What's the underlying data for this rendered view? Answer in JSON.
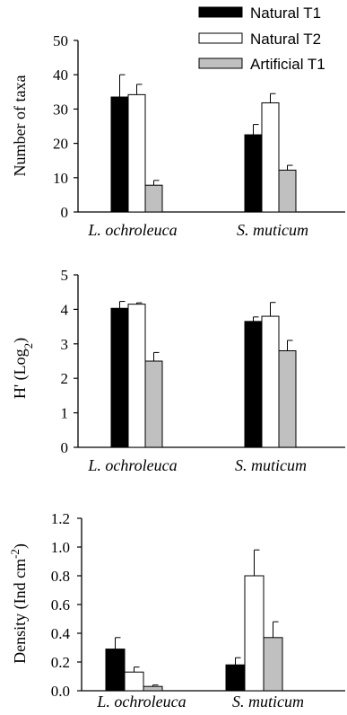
{
  "legend": [
    {
      "name": "Natural T1",
      "color": "#000000"
    },
    {
      "name": "Natural T2",
      "color": "#ffffff"
    },
    {
      "name": "Artificial T1",
      "color": "#c0c0c0"
    }
  ],
  "chart_data": [
    {
      "type": "bar",
      "title": "",
      "ylabel": "Number of taxa",
      "ylabel_sub": "",
      "ylabel_tail": "",
      "ylim": [
        0,
        50
      ],
      "yticks": [
        "0",
        "10",
        "20",
        "30",
        "40",
        "50"
      ],
      "categories": [
        "L. ochroleuca",
        "S. muticum"
      ],
      "series": [
        {
          "name": "Natural T1",
          "values": [
            33.5,
            22.5
          ],
          "errors": [
            6.5,
            3.0
          ]
        },
        {
          "name": "Natural T2",
          "values": [
            34.2,
            31.8
          ],
          "errors": [
            3.0,
            2.7
          ]
        },
        {
          "name": "Artificial T1",
          "values": [
            7.8,
            12.2
          ],
          "errors": [
            1.4,
            1.4
          ]
        }
      ]
    },
    {
      "type": "bar",
      "title": "",
      "ylabel": "H' (Log",
      "ylabel_sub": "2",
      "ylabel_tail": ")",
      "ylim": [
        0,
        5
      ],
      "yticks": [
        "0",
        "1",
        "2",
        "3",
        "4",
        "5"
      ],
      "categories": [
        "L. ochroleuca",
        "S. muticum"
      ],
      "series": [
        {
          "name": "Natural T1",
          "values": [
            4.03,
            3.65
          ],
          "errors": [
            0.2,
            0.13
          ]
        },
        {
          "name": "Natural T2",
          "values": [
            4.15,
            3.8
          ],
          "errors": [
            0.04,
            0.4
          ]
        },
        {
          "name": "Artificial T1",
          "values": [
            2.5,
            2.8
          ],
          "errors": [
            0.25,
            0.3
          ]
        }
      ]
    },
    {
      "type": "bar",
      "title": "",
      "ylabel": "Density (Ind cm",
      "ylabel_sup": "-2",
      "ylabel_tail": ")",
      "ylim": [
        0,
        1.2
      ],
      "yticks": [
        "0.0",
        "0.2",
        "0.4",
        "0.6",
        "0.8",
        "1.0",
        "1.2"
      ],
      "categories": [
        "L. ochroleuca",
        "S. muticum"
      ],
      "series": [
        {
          "name": "Natural T1",
          "values": [
            0.29,
            0.18
          ],
          "errors": [
            0.08,
            0.05
          ]
        },
        {
          "name": "Natural T2",
          "values": [
            0.13,
            0.8
          ],
          "errors": [
            0.035,
            0.18
          ]
        },
        {
          "name": "Artificial T1",
          "values": [
            0.03,
            0.37
          ],
          "errors": [
            0.01,
            0.11
          ]
        }
      ]
    }
  ]
}
